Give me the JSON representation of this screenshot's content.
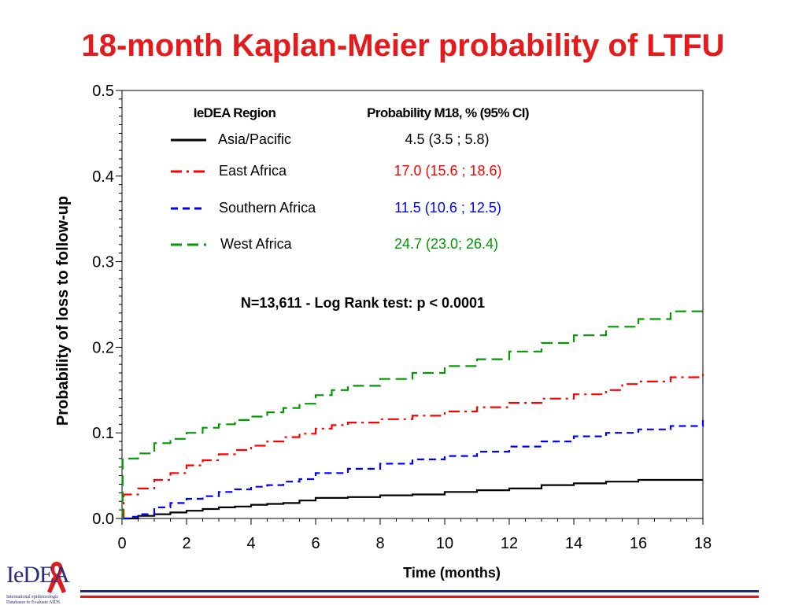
{
  "slide": {
    "title": "18-month Kaplan-Meier probability of LTFU"
  },
  "logo": {
    "wordmark": "IeDEA",
    "line1": "International epidemiologic",
    "line2": "Databases to Evaluate AIDS",
    "ribbon_color": "#d81e1e"
  },
  "colors": {
    "title": "#e41a1c",
    "rule_blue": "#1f2a6e",
    "rule_red": "#d81e1e"
  },
  "chart_data": {
    "type": "line",
    "title": "",
    "xlabel": "Time (months)",
    "ylabel": "Probability of loss to follow-up",
    "xlim": [
      0,
      18
    ],
    "ylim": [
      0,
      0.5
    ],
    "xticks": [
      0,
      2,
      4,
      6,
      8,
      10,
      12,
      14,
      16,
      18
    ],
    "xtick_labels": [
      "0",
      "2",
      "4",
      "6",
      "8",
      "10",
      "12",
      "14",
      "16",
      "18"
    ],
    "yticks": [
      0,
      0.1,
      0.2,
      0.3,
      0.4,
      0.5
    ],
    "ytick_labels": [
      "0.0",
      "0.1",
      "0.2",
      "0.3",
      "0.4",
      "0.5"
    ],
    "grid": false,
    "legend_position": "top",
    "legend_header": {
      "region": "IeDEA Region",
      "prob": "Probability M18, % (95% CI)"
    },
    "annotation": "N=13,611 - Log Rank test: p < 0.0001",
    "series": [
      {
        "name": "Asia/Pacific",
        "prob": "4.5 (3.5 ; 5.8)",
        "color": "#000000",
        "dash": "solid",
        "x": [
          0,
          0.5,
          1,
          1.5,
          2,
          2.5,
          3,
          3.5,
          4,
          4.5,
          5,
          5.5,
          6,
          7,
          8,
          9,
          10,
          11,
          12,
          13,
          14,
          15,
          16,
          17,
          18
        ],
        "y": [
          0,
          0.003,
          0.005,
          0.007,
          0.009,
          0.011,
          0.013,
          0.014,
          0.016,
          0.017,
          0.018,
          0.021,
          0.024,
          0.025,
          0.027,
          0.028,
          0.031,
          0.033,
          0.035,
          0.039,
          0.041,
          0.043,
          0.045,
          0.045,
          0.045
        ]
      },
      {
        "name": "East Africa",
        "prob": "17.0 (15.6 ; 18.6)",
        "color": "#ff0000",
        "dash": "dashdot",
        "x": [
          0,
          0.05,
          0.5,
          1,
          1.5,
          2,
          2.5,
          3,
          3.5,
          4,
          4.5,
          5,
          5.5,
          6,
          6.5,
          7,
          8,
          9,
          10,
          11,
          12,
          13,
          14,
          15,
          15.5,
          16,
          17,
          18
        ],
        "y": [
          0,
          0.028,
          0.035,
          0.045,
          0.053,
          0.062,
          0.068,
          0.075,
          0.08,
          0.085,
          0.09,
          0.095,
          0.099,
          0.105,
          0.109,
          0.112,
          0.116,
          0.12,
          0.125,
          0.13,
          0.135,
          0.14,
          0.145,
          0.15,
          0.157,
          0.16,
          0.165,
          0.169
        ]
      },
      {
        "name": "Southern Africa",
        "prob": "11.5 (10.6 ; 12.5)",
        "color": "#0000ff",
        "dash": "dash",
        "x": [
          0,
          0.3,
          0.5,
          1,
          1.5,
          2,
          2.5,
          3,
          3.5,
          4,
          4.5,
          5,
          5.5,
          6,
          7,
          8,
          9,
          10,
          11,
          12,
          13,
          14,
          15,
          16,
          17,
          18
        ],
        "y": [
          0,
          0.002,
          0.005,
          0.013,
          0.018,
          0.023,
          0.026,
          0.031,
          0.034,
          0.037,
          0.039,
          0.043,
          0.046,
          0.053,
          0.058,
          0.064,
          0.069,
          0.073,
          0.078,
          0.084,
          0.09,
          0.096,
          0.1,
          0.104,
          0.108,
          0.115
        ]
      },
      {
        "name": "West Africa",
        "prob": "24.7 (23.0; 26.4)",
        "color": "#009900",
        "dash": "longdash",
        "x": [
          0,
          0.02,
          0.5,
          1,
          1.5,
          2,
          2.5,
          3,
          3.5,
          4,
          4.5,
          5,
          5.5,
          6,
          6.5,
          7,
          8,
          9,
          10,
          11,
          12,
          13,
          14,
          15,
          16,
          17,
          18
        ],
        "y": [
          0,
          0.07,
          0.076,
          0.088,
          0.093,
          0.1,
          0.106,
          0.11,
          0.115,
          0.119,
          0.124,
          0.129,
          0.134,
          0.144,
          0.15,
          0.155,
          0.163,
          0.17,
          0.178,
          0.186,
          0.195,
          0.205,
          0.214,
          0.224,
          0.233,
          0.242,
          0.247
        ]
      }
    ]
  }
}
